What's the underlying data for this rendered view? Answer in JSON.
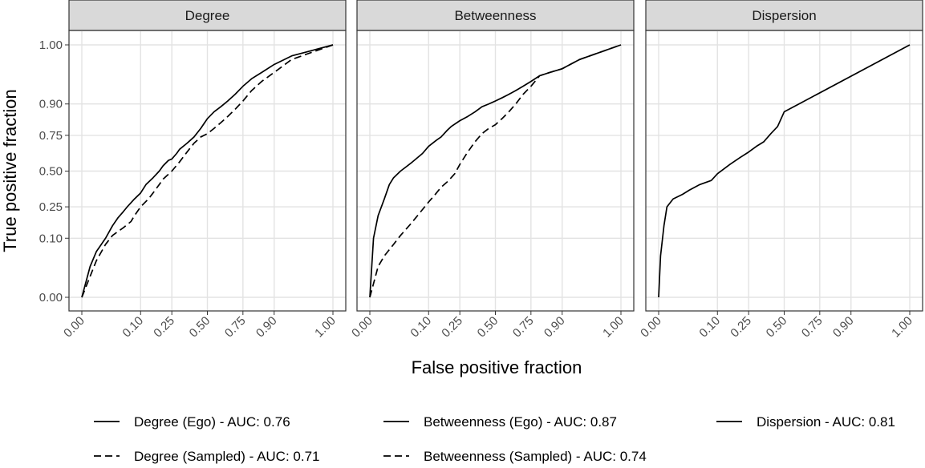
{
  "chart_data": {
    "type": "line",
    "xlabel": "False positive fraction",
    "ylabel": "True positive fraction",
    "xlim": [
      0,
      1
    ],
    "ylim": [
      0,
      1
    ],
    "x_scale": "probit",
    "y_scale": "probit",
    "grid": true,
    "legend_position": "bottom",
    "x_ticks": [
      0.0,
      0.1,
      0.25,
      0.5,
      0.75,
      0.9,
      1.0
    ],
    "x_tick_labels": [
      "0.00",
      "0.10",
      "0.25",
      "0.50",
      "0.75",
      "0.90",
      "1.00"
    ],
    "y_ticks": [
      0.0,
      0.1,
      0.25,
      0.5,
      0.75,
      0.9,
      1.0
    ],
    "y_tick_labels": [
      "0.00",
      "0.10",
      "0.25",
      "0.50",
      "0.75",
      "0.90",
      "1.00"
    ],
    "panels": [
      {
        "title": "Degree",
        "series": [
          {
            "name": "Degree (Ego) - AUC: 0.76",
            "linetype": "solid",
            "points": [
              [
                0.0,
                0.0
              ],
              [
                0.005,
                0.03
              ],
              [
                0.01,
                0.06
              ],
              [
                0.02,
                0.1
              ],
              [
                0.03,
                0.15
              ],
              [
                0.04,
                0.19
              ],
              [
                0.05,
                0.22
              ],
              [
                0.06,
                0.25
              ],
              [
                0.08,
                0.3
              ],
              [
                0.1,
                0.34
              ],
              [
                0.12,
                0.4
              ],
              [
                0.15,
                0.45
              ],
              [
                0.18,
                0.5
              ],
              [
                0.2,
                0.54
              ],
              [
                0.23,
                0.58
              ],
              [
                0.25,
                0.59
              ],
              [
                0.28,
                0.63
              ],
              [
                0.3,
                0.66
              ],
              [
                0.35,
                0.7
              ],
              [
                0.4,
                0.74
              ],
              [
                0.45,
                0.79
              ],
              [
                0.5,
                0.84
              ],
              [
                0.55,
                0.87
              ],
              [
                0.6,
                0.89
              ],
              [
                0.65,
                0.91
              ],
              [
                0.7,
                0.93
              ],
              [
                0.75,
                0.95
              ],
              [
                0.8,
                0.965
              ],
              [
                0.85,
                0.975
              ],
              [
                0.9,
                0.985
              ],
              [
                0.95,
                0.993
              ],
              [
                1.0,
                1.0
              ]
            ]
          },
          {
            "name": "Degree (Sampled) - AUC: 0.71",
            "linetype": "dashed",
            "points": [
              [
                0.0,
                0.0
              ],
              [
                0.01,
                0.04
              ],
              [
                0.02,
                0.08
              ],
              [
                0.03,
                0.11
              ],
              [
                0.05,
                0.14
              ],
              [
                0.07,
                0.17
              ],
              [
                0.08,
                0.2
              ],
              [
                0.1,
                0.25
              ],
              [
                0.13,
                0.3
              ],
              [
                0.15,
                0.34
              ],
              [
                0.18,
                0.4
              ],
              [
                0.2,
                0.44
              ],
              [
                0.25,
                0.5
              ],
              [
                0.3,
                0.57
              ],
              [
                0.35,
                0.64
              ],
              [
                0.4,
                0.7
              ],
              [
                0.45,
                0.74
              ],
              [
                0.5,
                0.76
              ],
              [
                0.55,
                0.79
              ],
              [
                0.6,
                0.82
              ],
              [
                0.65,
                0.85
              ],
              [
                0.7,
                0.88
              ],
              [
                0.75,
                0.91
              ],
              [
                0.8,
                0.94
              ],
              [
                0.85,
                0.96
              ],
              [
                0.9,
                0.975
              ],
              [
                0.95,
                0.99
              ],
              [
                1.0,
                1.0
              ]
            ]
          }
        ]
      },
      {
        "title": "Betweenness",
        "series": [
          {
            "name": "Betweenness (Ego) - AUC: 0.87",
            "linetype": "solid",
            "points": [
              [
                0.0,
                0.0
              ],
              [
                0.002,
                0.1
              ],
              [
                0.005,
                0.2
              ],
              [
                0.01,
                0.3
              ],
              [
                0.015,
                0.4
              ],
              [
                0.02,
                0.45
              ],
              [
                0.03,
                0.5
              ],
              [
                0.05,
                0.56
              ],
              [
                0.08,
                0.63
              ],
              [
                0.1,
                0.68
              ],
              [
                0.13,
                0.72
              ],
              [
                0.15,
                0.74
              ],
              [
                0.18,
                0.78
              ],
              [
                0.2,
                0.8
              ],
              [
                0.25,
                0.83
              ],
              [
                0.3,
                0.85
              ],
              [
                0.35,
                0.87
              ],
              [
                0.4,
                0.89
              ],
              [
                0.45,
                0.9
              ],
              [
                0.5,
                0.91
              ],
              [
                0.55,
                0.92
              ],
              [
                0.6,
                0.93
              ],
              [
                0.65,
                0.94
              ],
              [
                0.7,
                0.95
              ],
              [
                0.75,
                0.96
              ],
              [
                0.8,
                0.97
              ],
              [
                0.85,
                0.975
              ],
              [
                0.9,
                0.98
              ],
              [
                0.95,
                0.99
              ],
              [
                1.0,
                1.0
              ]
            ]
          },
          {
            "name": "Betweenness (Sampled) - AUC: 0.74",
            "linetype": "dashed",
            "points": [
              [
                0.0,
                0.0
              ],
              [
                0.005,
                0.03
              ],
              [
                0.01,
                0.05
              ],
              [
                0.02,
                0.08
              ],
              [
                0.03,
                0.11
              ],
              [
                0.05,
                0.16
              ],
              [
                0.07,
                0.21
              ],
              [
                0.1,
                0.28
              ],
              [
                0.12,
                0.32
              ],
              [
                0.15,
                0.38
              ],
              [
                0.18,
                0.42
              ],
              [
                0.2,
                0.45
              ],
              [
                0.22,
                0.48
              ],
              [
                0.25,
                0.55
              ],
              [
                0.3,
                0.64
              ],
              [
                0.35,
                0.71
              ],
              [
                0.4,
                0.76
              ],
              [
                0.45,
                0.79
              ],
              [
                0.5,
                0.81
              ],
              [
                0.55,
                0.84
              ],
              [
                0.6,
                0.87
              ],
              [
                0.65,
                0.9
              ],
              [
                0.7,
                0.93
              ],
              [
                0.75,
                0.95
              ],
              [
                0.8,
                0.97
              ],
              [
                0.85,
                0.975
              ],
              [
                0.9,
                0.98
              ],
              [
                0.95,
                0.99
              ],
              [
                1.0,
                1.0
              ]
            ]
          }
        ]
      },
      {
        "title": "Dispersion",
        "series": [
          {
            "name": "Dispersion - AUC: 0.81",
            "linetype": "solid",
            "points": [
              [
                0.0,
                0.0
              ],
              [
                0.001,
                0.05
              ],
              [
                0.003,
                0.15
              ],
              [
                0.005,
                0.25
              ],
              [
                0.01,
                0.3
              ],
              [
                0.02,
                0.33
              ],
              [
                0.03,
                0.36
              ],
              [
                0.05,
                0.4
              ],
              [
                0.08,
                0.43
              ],
              [
                0.1,
                0.48
              ],
              [
                0.12,
                0.51
              ],
              [
                0.15,
                0.55
              ],
              [
                0.2,
                0.6
              ],
              [
                0.25,
                0.64
              ],
              [
                0.3,
                0.68
              ],
              [
                0.35,
                0.71
              ],
              [
                0.4,
                0.76
              ],
              [
                0.45,
                0.8
              ],
              [
                0.5,
                0.87
              ],
              [
                1.0,
                1.0
              ]
            ]
          }
        ]
      }
    ],
    "legend": [
      {
        "label": "Degree (Ego) - AUC: 0.76",
        "linetype": "solid"
      },
      {
        "label": "Degree (Sampled) - AUC: 0.71",
        "linetype": "dashed"
      },
      {
        "label": "Betweenness (Ego) - AUC: 0.87",
        "linetype": "solid"
      },
      {
        "label": "Betweenness (Sampled) - AUC: 0.74",
        "linetype": "dashed"
      },
      {
        "label": "Dispersion - AUC: 0.81",
        "linetype": "solid"
      }
    ],
    "colors": {
      "line": "#000000",
      "grid": "#ebebeb",
      "strip": "#d9d9d9",
      "border": "#333333"
    }
  }
}
